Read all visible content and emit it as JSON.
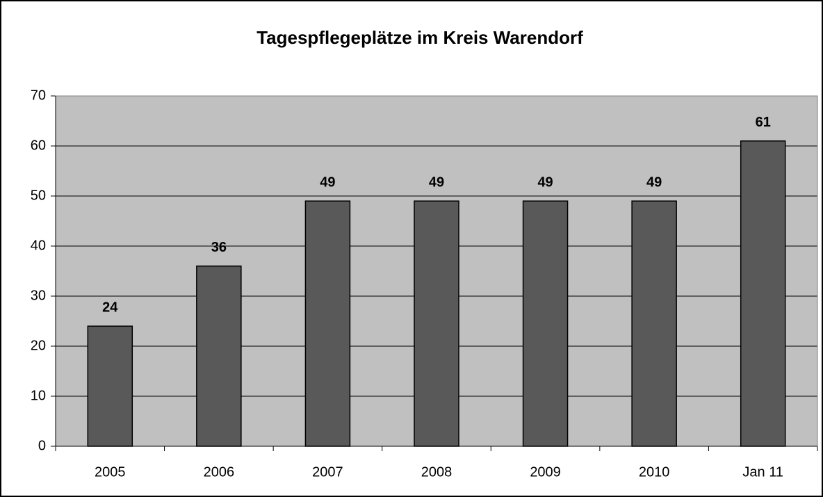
{
  "chart_data": {
    "type": "bar",
    "title": "Tagespflegeplätze im Kreis Warendorf",
    "categories": [
      "2005",
      "2006",
      "2007",
      "2008",
      "2009",
      "2010",
      "Jan 11"
    ],
    "values": [
      24,
      36,
      49,
      49,
      49,
      49,
      61
    ],
    "color": "#595959",
    "plot_background": "#c0c0c0",
    "ylim": [
      0,
      70
    ],
    "yticks": [
      0,
      10,
      20,
      30,
      40,
      50,
      60,
      70
    ],
    "grid": true
  }
}
